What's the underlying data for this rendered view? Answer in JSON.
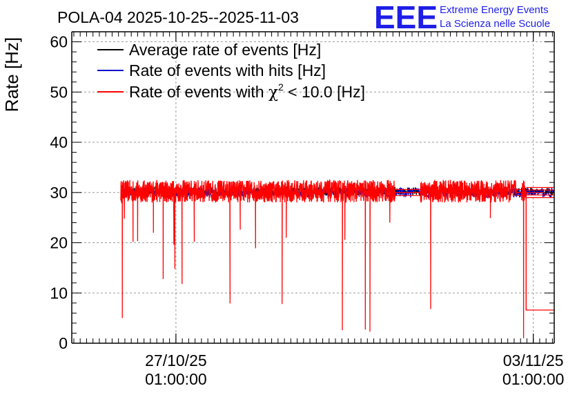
{
  "chart_data": {
    "type": "line",
    "title": "POLA-04 2025-10-25--2025-11-03",
    "ylabel": "Rate [Hz]",
    "xlabel": "",
    "x_unit": "days since 2025-10-25 00:00",
    "xlim": [
      0,
      9.45
    ],
    "ylim": [
      0,
      62
    ],
    "yticks": [
      0,
      10,
      20,
      30,
      40,
      50,
      60
    ],
    "grid": true,
    "xticks": [
      {
        "x": 2.04,
        "line1": "27/10/25",
        "line2": "01:00:00"
      },
      {
        "x": 9.04,
        "line1": "03/11/25",
        "line2": "01:00:00"
      }
    ],
    "legend_position": "top-left",
    "legend": [
      {
        "name": "Average rate of events [Hz]",
        "color": "#000000"
      },
      {
        "name": "Rate of events with hits [Hz]",
        "color": "#0000cc"
      },
      {
        "name_prefix": "Rate of events with ",
        "name_symbol": "χ",
        "name_sup": "2",
        "name_suffix": " < 10.0 [Hz]",
        "color": "#ff0000"
      }
    ],
    "series": [
      {
        "name": "Average rate of events",
        "color": "#000000",
        "baseline": 30.2,
        "noise": 0.8
      },
      {
        "name": "Rate of events with hits",
        "color": "#0000cc",
        "baseline": 30.0,
        "noise": 1.0
      },
      {
        "name": "Rate of events with chi2 < 10.0",
        "color": "#ff0000",
        "start": 0.96,
        "baseline": 30.0,
        "noise_band": [
          28.0,
          32.5
        ],
        "gaps": [
          [
            6.33,
            6.83
          ],
          [
            8.71,
            8.81
          ]
        ],
        "spikes": [
          {
            "x": 0.99,
            "y": 5.0
          },
          {
            "x": 1.03,
            "y": 24.8
          },
          {
            "x": 1.2,
            "y": 20.2
          },
          {
            "x": 1.29,
            "y": 20.3
          },
          {
            "x": 1.6,
            "y": 22.0
          },
          {
            "x": 1.79,
            "y": 12.8
          },
          {
            "x": 2.0,
            "y": 19.6
          },
          {
            "x": 2.02,
            "y": 14.8
          },
          {
            "x": 2.16,
            "y": 11.8
          },
          {
            "x": 2.4,
            "y": 20.2
          },
          {
            "x": 3.1,
            "y": 7.9
          },
          {
            "x": 3.3,
            "y": 22.6
          },
          {
            "x": 3.6,
            "y": 18.9
          },
          {
            "x": 4.12,
            "y": 7.8
          },
          {
            "x": 4.2,
            "y": 21.0
          },
          {
            "x": 5.3,
            "y": 2.6
          },
          {
            "x": 5.35,
            "y": 20.6
          },
          {
            "x": 5.75,
            "y": 2.7
          },
          {
            "x": 5.84,
            "y": 2.3
          },
          {
            "x": 6.23,
            "y": 24.0
          },
          {
            "x": 7.03,
            "y": 6.8
          },
          {
            "x": 8.2,
            "y": 24.9
          },
          {
            "x": 8.85,
            "y": 1.0
          },
          {
            "x": 8.9,
            "y": 6.5
          }
        ],
        "tail": {
          "from": 8.9,
          "to": 9.45,
          "y": 6.6
        }
      }
    ]
  },
  "branding": {
    "logo": "EEE",
    "line1": "Extreme Energy Events",
    "line2": "La Scienza nelle Scuole"
  }
}
